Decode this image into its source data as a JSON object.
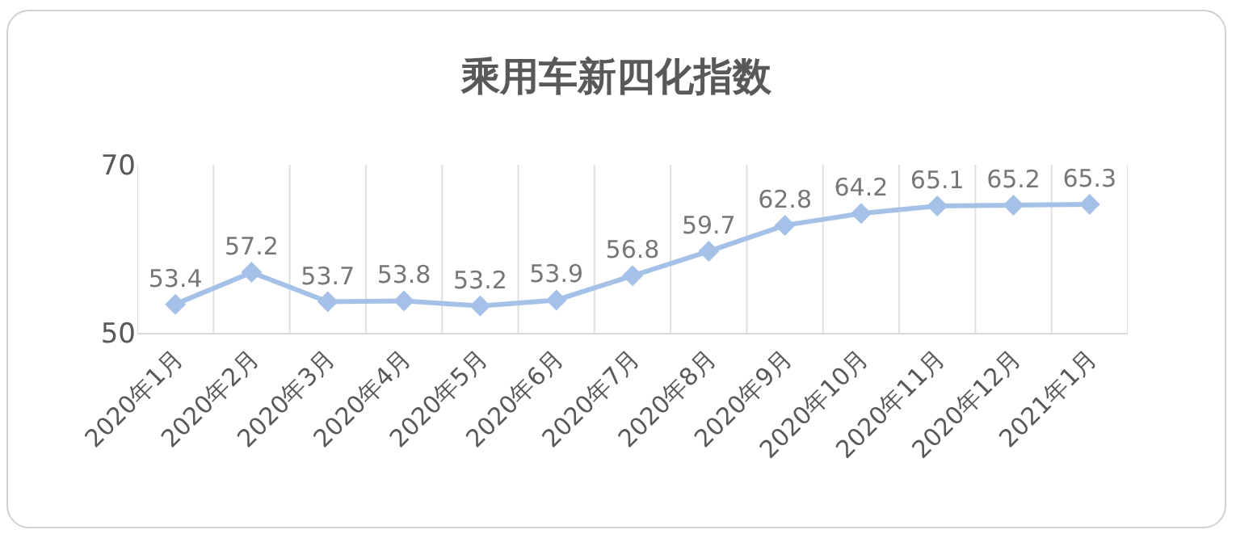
{
  "chart_data": {
    "type": "line",
    "title": "乘用车新四化指数",
    "categories": [
      "2020年1月",
      "2020年2月",
      "2020年3月",
      "2020年4月",
      "2020年5月",
      "2020年6月",
      "2020年7月",
      "2020年8月",
      "2020年9月",
      "2020年10月",
      "2020年11月",
      "2020年12月",
      "2021年1月"
    ],
    "values": [
      53.4,
      57.2,
      53.7,
      53.8,
      53.2,
      53.9,
      56.8,
      59.7,
      62.8,
      64.2,
      65.1,
      65.2,
      65.3
    ],
    "color": "#a6c1e8",
    "marker": "diamond",
    "line_style": "solid",
    "data_labels": true,
    "ylim": [
      50,
      70
    ],
    "yticks": [
      50,
      70
    ],
    "grid": "x"
  }
}
